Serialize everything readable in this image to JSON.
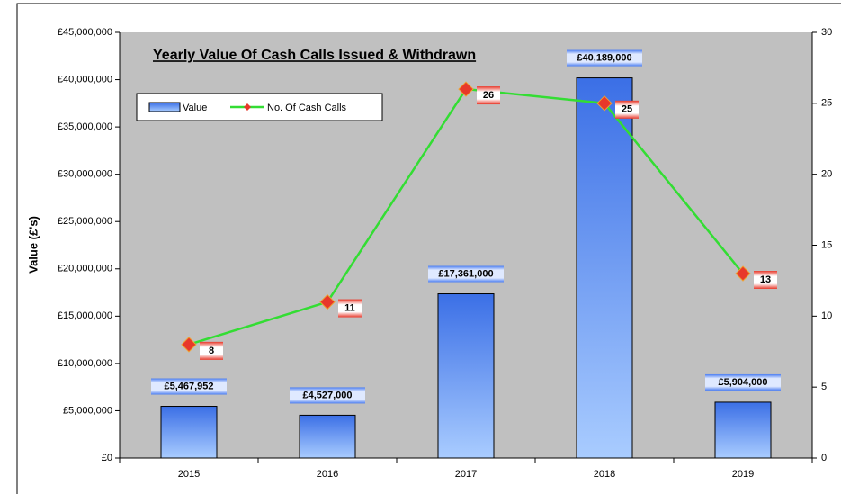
{
  "chart_data": {
    "type": "bar",
    "title": "Yearly Value Of Cash Calls Issued & Withdrawn",
    "y_label": "Value (£'s)",
    "categories": [
      "2015",
      "2016",
      "2017",
      "2018",
      "2019"
    ],
    "series": [
      {
        "name": "Value",
        "color": "#3b6fe6",
        "values": [
          5467952,
          4527000,
          17361000,
          40189000,
          5904000
        ],
        "value_labels": [
          "£5,467,952",
          "£4,527,000",
          "£17,361,000",
          "£40,189,000",
          "£5,904,000"
        ]
      },
      {
        "name": "No. Of Cash Calls",
        "type": "line",
        "axis": "y2",
        "color": "#33dd33",
        "marker_color": "#e8382a",
        "values": [
          8,
          11,
          26,
          25,
          13
        ]
      }
    ],
    "ylim": [
      0,
      45000000
    ],
    "yticks": [
      {
        "value": 0,
        "label": "£0"
      },
      {
        "value": 5000000,
        "label": "£5,000,000"
      },
      {
        "value": 10000000,
        "label": "£10,000,000"
      },
      {
        "value": 15000000,
        "label": "£15,000,000"
      },
      {
        "value": 20000000,
        "label": "£20,000,000"
      },
      {
        "value": 25000000,
        "label": "£25,000,000"
      },
      {
        "value": 30000000,
        "label": "£30,000,000"
      },
      {
        "value": 35000000,
        "label": "£35,000,000"
      },
      {
        "value": 40000000,
        "label": "£40,000,000"
      },
      {
        "value": 45000000,
        "label": "£45,000,000"
      }
    ],
    "y2lim": [
      0,
      30
    ],
    "y2ticks": [
      0,
      5,
      10,
      15,
      20,
      25,
      30
    ],
    "legend": "top-left"
  }
}
